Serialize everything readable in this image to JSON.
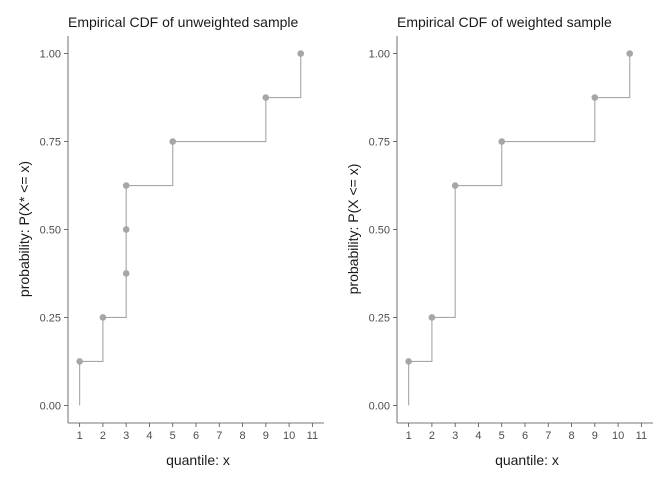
{
  "chart_data": [
    {
      "type": "step",
      "title": "Empirical CDF of unweighted sample",
      "xlabel": "quantile: x",
      "ylabel": "probability: P(X* <= x)",
      "xlim": [
        0.5,
        11.5
      ],
      "ylim": [
        -0.05,
        1.05
      ],
      "xticks": [
        1,
        2,
        3,
        4,
        5,
        6,
        7,
        8,
        9,
        10,
        11
      ],
      "yticks": [
        0.0,
        0.25,
        0.5,
        0.75,
        1.0
      ],
      "ytick_labels": [
        "0.00",
        "0.25",
        "0.50",
        "0.75",
        "1.00"
      ],
      "grid": false,
      "series_color": "#a6a6a6",
      "points": [
        {
          "x": 1,
          "y": 0.125
        },
        {
          "x": 2,
          "y": 0.25
        },
        {
          "x": 3,
          "y": 0.375
        },
        {
          "x": 3,
          "y": 0.5
        },
        {
          "x": 3,
          "y": 0.625
        },
        {
          "x": 5,
          "y": 0.75
        },
        {
          "x": 9,
          "y": 0.875
        },
        {
          "x": 10.5,
          "y": 1.0
        }
      ],
      "start_y": 0
    },
    {
      "type": "step",
      "title": "Empirical CDF of weighted sample",
      "xlabel": "quantile: x",
      "ylabel": "probability: P(X <= x)",
      "xlim": [
        0.5,
        11.5
      ],
      "ylim": [
        -0.05,
        1.05
      ],
      "xticks": [
        1,
        2,
        3,
        4,
        5,
        6,
        7,
        8,
        9,
        10,
        11
      ],
      "yticks": [
        0.0,
        0.25,
        0.5,
        0.75,
        1.0
      ],
      "ytick_labels": [
        "0.00",
        "0.25",
        "0.50",
        "0.75",
        "1.00"
      ],
      "grid": false,
      "series_color": "#a6a6a6",
      "points": [
        {
          "x": 1,
          "y": 0.125
        },
        {
          "x": 2,
          "y": 0.25
        },
        {
          "x": 3,
          "y": 0.625
        },
        {
          "x": 5,
          "y": 0.75
        },
        {
          "x": 9,
          "y": 0.875
        },
        {
          "x": 10.5,
          "y": 1.0
        }
      ],
      "start_y": 0
    }
  ]
}
